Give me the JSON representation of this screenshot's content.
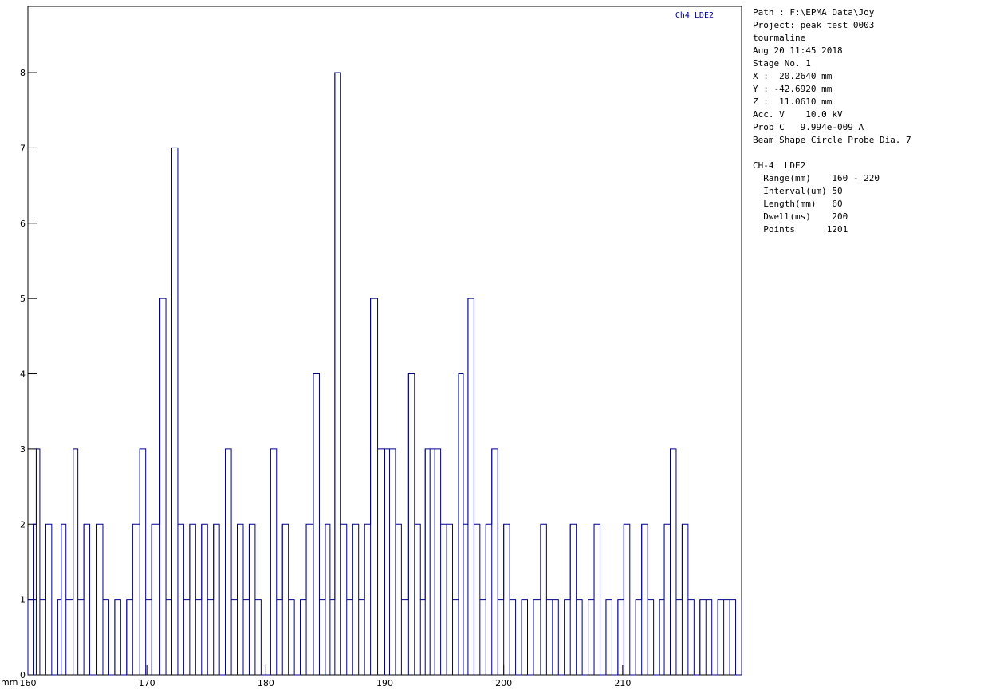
{
  "chart_data": {
    "type": "line",
    "step": true,
    "color": "#00008b",
    "annotation": "Ch4 LDE2",
    "x_unit": "mm",
    "x": [
      160,
      160.5,
      160.7,
      161,
      161.5,
      162,
      162.5,
      162.8,
      163.2,
      163.8,
      164.2,
      164.7,
      165.2,
      165.8,
      166.3,
      166.8,
      167.3,
      167.8,
      168.3,
      168.8,
      169.4,
      169.9,
      170.4,
      171.1,
      171.6,
      172.1,
      172.6,
      173.1,
      173.6,
      174.1,
      174.6,
      175.1,
      175.6,
      176.1,
      176.6,
      177.1,
      177.6,
      178.1,
      178.6,
      179.1,
      179.6,
      180.4,
      180.9,
      181.4,
      181.9,
      182.4,
      182.9,
      183.4,
      184,
      184.5,
      185,
      185.4,
      185.8,
      186.3,
      186.8,
      187.3,
      187.8,
      188.3,
      188.8,
      189.4,
      190,
      190.4,
      190.9,
      191.4,
      192,
      192.5,
      193,
      193.4,
      193.8,
      194.2,
      194.7,
      195.2,
      195.7,
      196.2,
      196.6,
      197,
      197.5,
      198,
      198.5,
      199,
      199.5,
      200,
      200.5,
      201,
      201.5,
      202,
      202.5,
      203.1,
      203.6,
      204.1,
      204.6,
      205.1,
      205.6,
      206.1,
      206.6,
      207.1,
      207.6,
      208.1,
      208.6,
      209.1,
      209.6,
      210.1,
      210.6,
      211.1,
      211.6,
      212.1,
      212.6,
      213.1,
      213.5,
      214,
      214.5,
      215,
      215.5,
      216,
      216.5,
      217,
      217.5,
      218,
      218.5,
      219,
      219.5,
      220
    ],
    "values": [
      1,
      2,
      3,
      1,
      2,
      0,
      1,
      2,
      1,
      3,
      1,
      2,
      0,
      2,
      1,
      0,
      1,
      0,
      1,
      2,
      3,
      1,
      2,
      5,
      1,
      7,
      2,
      1,
      2,
      1,
      2,
      1,
      2,
      0,
      3,
      1,
      2,
      1,
      2,
      1,
      0,
      3,
      1,
      2,
      1,
      0,
      1,
      2,
      4,
      1,
      2,
      1,
      8,
      2,
      1,
      2,
      1,
      2,
      5,
      3,
      3,
      3,
      2,
      1,
      4,
      2,
      1,
      3,
      3,
      3,
      2,
      2,
      1,
      4,
      2,
      5,
      2,
      1,
      2,
      3,
      1,
      2,
      1,
      0,
      1,
      0,
      1,
      2,
      1,
      1,
      0,
      1,
      2,
      1,
      0,
      1,
      2,
      0,
      1,
      0,
      1,
      2,
      0,
      1,
      2,
      1,
      0,
      1,
      2,
      3,
      1,
      2,
      1,
      0,
      1,
      1,
      0,
      1,
      1,
      1,
      0,
      1
    ],
    "xlim": [
      160,
      220
    ],
    "xticks": [
      160,
      170,
      180,
      190,
      200,
      210
    ],
    "ylim": [
      0,
      8.88
    ],
    "yticks": [
      0,
      1,
      2,
      3,
      4,
      5,
      6,
      7,
      8
    ]
  },
  "info": {
    "groups": [
      [
        "Path : F:\\EPMA Data\\Joy",
        "Project: peak test_0003",
        "tourmaline",
        "Aug 20 11:45 2018",
        "Stage No. 1",
        "X :  20.2640 mm",
        "Y : -42.6920 mm",
        "Z :  11.0610 mm",
        "Acc. V    10.0 kV",
        "Prob C   9.994e-009 A",
        "Beam Shape Circle Probe Dia. 7"
      ],
      [
        "CH-4  LDE2",
        "  Range(mm)    160 - 220",
        "  Interval(um) 50",
        "  Length(mm)   60",
        "  Dwell(ms)    200",
        "  Points      1201"
      ]
    ]
  }
}
